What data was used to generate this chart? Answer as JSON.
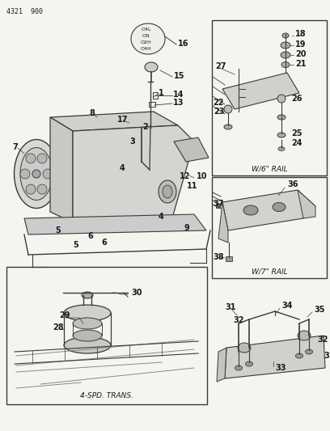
{
  "title": "4321  900",
  "bg_color": "#f5f5f0",
  "text_color": "#1a1a1a",
  "diagram_color": "#3a3a3a",
  "light_color": "#888888",
  "figsize": [
    4.08,
    5.33
  ],
  "dpi": 100,
  "captions": {
    "right_top": "W/6\" RAIL",
    "right_bottom": "W/7\" RAIL",
    "bottom_left": "4-SPD. TRANS."
  },
  "shift_pattern": [
    "O4L",
    "ON",
    "O2H",
    "O4H"
  ]
}
